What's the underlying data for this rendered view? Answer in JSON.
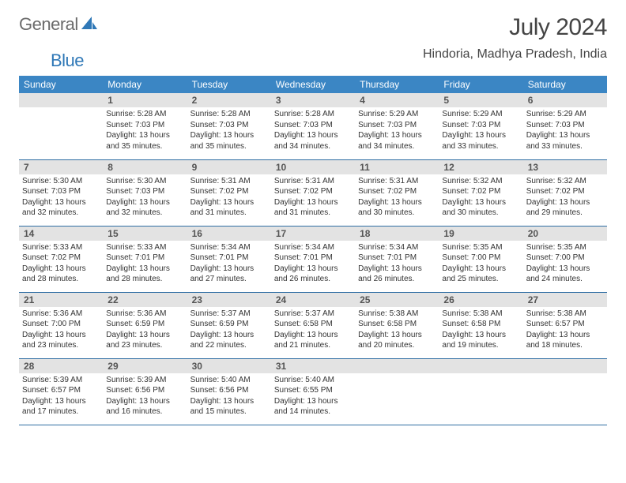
{
  "brand": {
    "textGray": "General",
    "textBlue": "Blue"
  },
  "title": "July 2024",
  "location": "Hindoria, Madhya Pradesh, India",
  "colors": {
    "headerBg": "#3b86c4",
    "headerText": "#ffffff",
    "dayNumBg": "#e3e3e3",
    "ruleColor": "#2f6ea3",
    "brandBlue": "#2f78b7",
    "brandGray": "#6b6b6b"
  },
  "dayNames": [
    "Sunday",
    "Monday",
    "Tuesday",
    "Wednesday",
    "Thursday",
    "Friday",
    "Saturday"
  ],
  "firstDayIndex": 1,
  "daysInMonth": 31,
  "days": {
    "1": {
      "sunrise": "5:28 AM",
      "sunset": "7:03 PM",
      "daylight": "13 hours and 35 minutes."
    },
    "2": {
      "sunrise": "5:28 AM",
      "sunset": "7:03 PM",
      "daylight": "13 hours and 35 minutes."
    },
    "3": {
      "sunrise": "5:28 AM",
      "sunset": "7:03 PM",
      "daylight": "13 hours and 34 minutes."
    },
    "4": {
      "sunrise": "5:29 AM",
      "sunset": "7:03 PM",
      "daylight": "13 hours and 34 minutes."
    },
    "5": {
      "sunrise": "5:29 AM",
      "sunset": "7:03 PM",
      "daylight": "13 hours and 33 minutes."
    },
    "6": {
      "sunrise": "5:29 AM",
      "sunset": "7:03 PM",
      "daylight": "13 hours and 33 minutes."
    },
    "7": {
      "sunrise": "5:30 AM",
      "sunset": "7:03 PM",
      "daylight": "13 hours and 32 minutes."
    },
    "8": {
      "sunrise": "5:30 AM",
      "sunset": "7:03 PM",
      "daylight": "13 hours and 32 minutes."
    },
    "9": {
      "sunrise": "5:31 AM",
      "sunset": "7:02 PM",
      "daylight": "13 hours and 31 minutes."
    },
    "10": {
      "sunrise": "5:31 AM",
      "sunset": "7:02 PM",
      "daylight": "13 hours and 31 minutes."
    },
    "11": {
      "sunrise": "5:31 AM",
      "sunset": "7:02 PM",
      "daylight": "13 hours and 30 minutes."
    },
    "12": {
      "sunrise": "5:32 AM",
      "sunset": "7:02 PM",
      "daylight": "13 hours and 30 minutes."
    },
    "13": {
      "sunrise": "5:32 AM",
      "sunset": "7:02 PM",
      "daylight": "13 hours and 29 minutes."
    },
    "14": {
      "sunrise": "5:33 AM",
      "sunset": "7:02 PM",
      "daylight": "13 hours and 28 minutes."
    },
    "15": {
      "sunrise": "5:33 AM",
      "sunset": "7:01 PM",
      "daylight": "13 hours and 28 minutes."
    },
    "16": {
      "sunrise": "5:34 AM",
      "sunset": "7:01 PM",
      "daylight": "13 hours and 27 minutes."
    },
    "17": {
      "sunrise": "5:34 AM",
      "sunset": "7:01 PM",
      "daylight": "13 hours and 26 minutes."
    },
    "18": {
      "sunrise": "5:34 AM",
      "sunset": "7:01 PM",
      "daylight": "13 hours and 26 minutes."
    },
    "19": {
      "sunrise": "5:35 AM",
      "sunset": "7:00 PM",
      "daylight": "13 hours and 25 minutes."
    },
    "20": {
      "sunrise": "5:35 AM",
      "sunset": "7:00 PM",
      "daylight": "13 hours and 24 minutes."
    },
    "21": {
      "sunrise": "5:36 AM",
      "sunset": "7:00 PM",
      "daylight": "13 hours and 23 minutes."
    },
    "22": {
      "sunrise": "5:36 AM",
      "sunset": "6:59 PM",
      "daylight": "13 hours and 23 minutes."
    },
    "23": {
      "sunrise": "5:37 AM",
      "sunset": "6:59 PM",
      "daylight": "13 hours and 22 minutes."
    },
    "24": {
      "sunrise": "5:37 AM",
      "sunset": "6:58 PM",
      "daylight": "13 hours and 21 minutes."
    },
    "25": {
      "sunrise": "5:38 AM",
      "sunset": "6:58 PM",
      "daylight": "13 hours and 20 minutes."
    },
    "26": {
      "sunrise": "5:38 AM",
      "sunset": "6:58 PM",
      "daylight": "13 hours and 19 minutes."
    },
    "27": {
      "sunrise": "5:38 AM",
      "sunset": "6:57 PM",
      "daylight": "13 hours and 18 minutes."
    },
    "28": {
      "sunrise": "5:39 AM",
      "sunset": "6:57 PM",
      "daylight": "13 hours and 17 minutes."
    },
    "29": {
      "sunrise": "5:39 AM",
      "sunset": "6:56 PM",
      "daylight": "13 hours and 16 minutes."
    },
    "30": {
      "sunrise": "5:40 AM",
      "sunset": "6:56 PM",
      "daylight": "13 hours and 15 minutes."
    },
    "31": {
      "sunrise": "5:40 AM",
      "sunset": "6:55 PM",
      "daylight": "13 hours and 14 minutes."
    }
  },
  "labels": {
    "sunrise": "Sunrise:",
    "sunset": "Sunset:",
    "daylight": "Daylight:"
  }
}
